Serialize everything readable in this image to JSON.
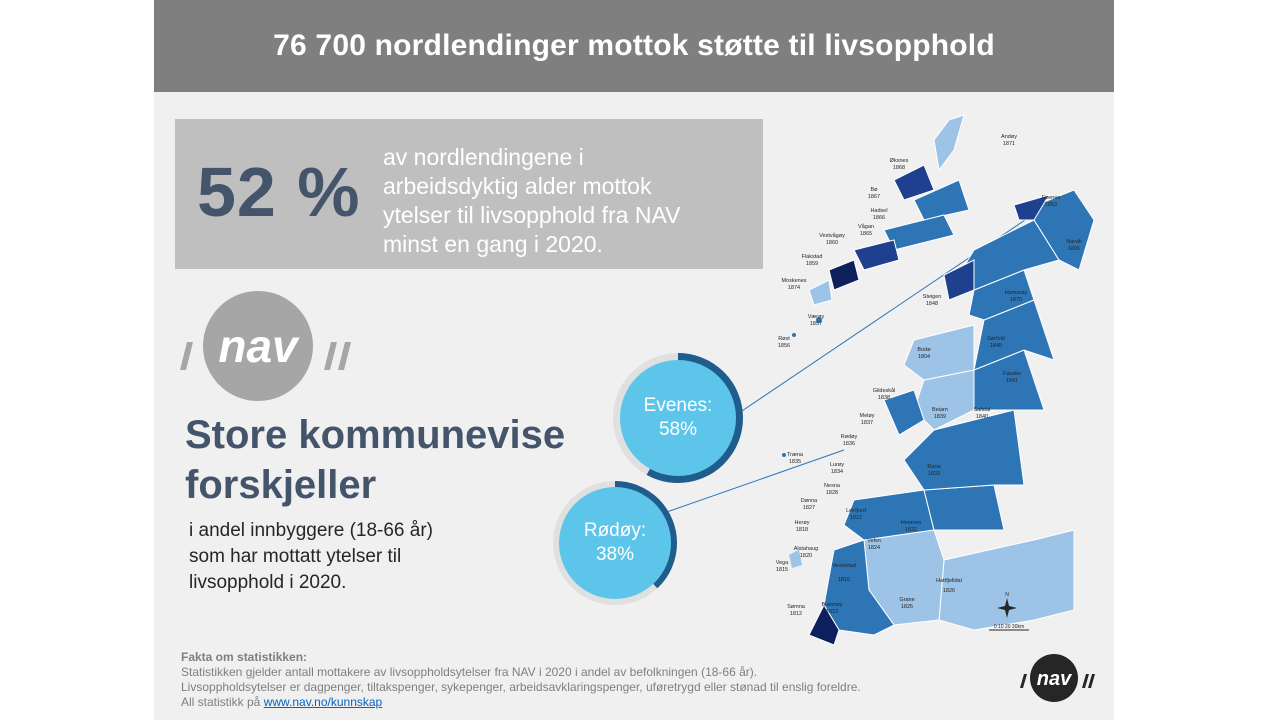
{
  "title": "76 700 nordlendinger mottok støtte til livsopphold",
  "stat": {
    "percent": "52 %",
    "line1": "av nordlendingene i",
    "line2": "arbeidsdyktig alder mottok",
    "line3": "ytelser til livsopphold fra NAV",
    "line4": "minst en gang i 2020."
  },
  "logo": {
    "text": "nav"
  },
  "heading": {
    "line1": "Store kommunevise",
    "line2": "forskjeller"
  },
  "subtext": {
    "line1": "i andel innbyggere  (18-66 år)",
    "line2": "som har mottatt  ytelser til",
    "line3": "livsopphold  i 2020."
  },
  "callouts": [
    {
      "name": "Evenes:",
      "value": "58%",
      "share": 0.58
    },
    {
      "name": "Rødøy:",
      "value": "38%",
      "share": 0.38
    }
  ],
  "map": {
    "labels": [
      {
        "name": "Andøy",
        "code": "1871"
      },
      {
        "name": "Øksnes",
        "code": "1868"
      },
      {
        "name": "Bø",
        "code": "1867"
      },
      {
        "name": "Hadsel",
        "code": "1866"
      },
      {
        "name": "Vågan",
        "code": "1865"
      },
      {
        "name": "Vestvågøy",
        "code": "1860"
      },
      {
        "name": "Flakstad",
        "code": "1859"
      },
      {
        "name": "Moskenes",
        "code": "1874"
      },
      {
        "name": "Værøy",
        "code": "1857"
      },
      {
        "name": "Røst",
        "code": "1856"
      },
      {
        "name": "Evenes",
        "code": "1853"
      },
      {
        "name": "Narvik",
        "code": "1806"
      },
      {
        "name": "Hamarøy",
        "code": "1875"
      },
      {
        "name": "Steigen",
        "code": "1848"
      },
      {
        "name": "Sørfold",
        "code": "1845"
      },
      {
        "name": "Bodø",
        "code": "1804"
      },
      {
        "name": "Fauske",
        "code": "1841"
      },
      {
        "name": "Gildeskål",
        "code": "1838"
      },
      {
        "name": "Beiarn",
        "code": "1839"
      },
      {
        "name": "Saltdal",
        "code": "1840"
      },
      {
        "name": "Meløy",
        "code": "1837"
      },
      {
        "name": "Rødøy",
        "code": "1836"
      },
      {
        "name": "Træna",
        "code": "1835"
      },
      {
        "name": "Lurøy",
        "code": "1834"
      },
      {
        "name": "Rana",
        "code": "1833"
      },
      {
        "name": "Nesna",
        "code": "1828"
      },
      {
        "name": "Dønna",
        "code": "1827"
      },
      {
        "name": "Leirfjord",
        "code": "1822"
      },
      {
        "name": "Hemnes",
        "code": "1832"
      },
      {
        "name": "Herøy",
        "code": "1818"
      },
      {
        "name": "Alstahaug",
        "code": "1820"
      },
      {
        "name": "Vefsn",
        "code": "1824"
      },
      {
        "name": "Vega",
        "code": "1815"
      },
      {
        "name": "Vevelstad",
        "code": "1816"
      },
      {
        "name": "Grane",
        "code": "1825"
      },
      {
        "name": "Hattfjelldal",
        "code": "1826"
      },
      {
        "name": "Sømna",
        "code": "1812"
      },
      {
        "name": "Brønnøy",
        "code": "1813"
      }
    ],
    "scale": "0  10  20  30km",
    "north": "N"
  },
  "facts": {
    "title": "Fakta om statistikken:",
    "line1": "Statistikken gjelder antall mottakere av livsoppholdsytelser fra NAV i 2020 i andel av befolkningen (18-66 år).",
    "line2": "Livsoppholdsytelser er dagpenger, tiltakspenger, sykepenger, arbeidsavklaringspenger,  uføretrygd eller stønad til enslig foreldre.",
    "line3_prefix": "All statistikk på ",
    "link": "www.nav.no/kunnskap"
  },
  "colors": {
    "title_bar": "#7f7f7f",
    "stat_box": "#bfbfbf",
    "heading": "#44546a",
    "circle_fill": "#5ec5ea",
    "ring": "#1f5d8c",
    "map_light": "#9dc3e6",
    "map_mid": "#2e75b6",
    "map_dark": "#1f3f8f",
    "map_darkest": "#0d1f5c"
  }
}
